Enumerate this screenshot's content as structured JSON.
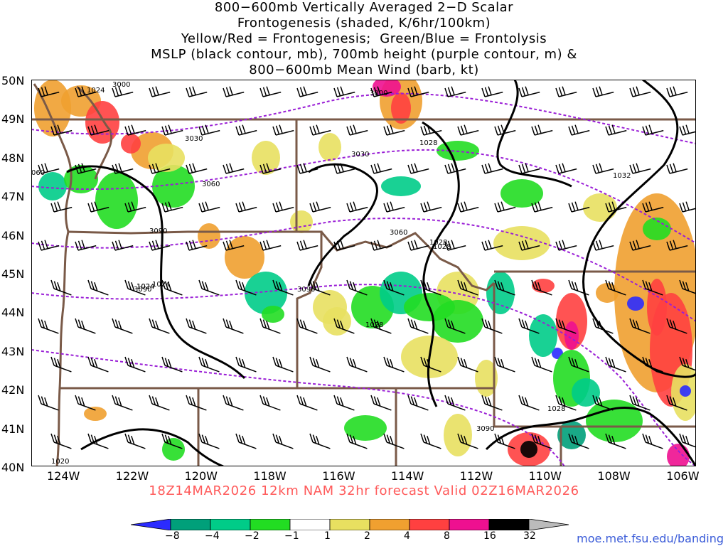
{
  "title_lines": [
    "800−600mb Vertically Averaged 2−D Scalar",
    "Frontogenesis (shaded, K/6hr/100km)",
    "Yellow/Red = Frontogenesis;  Green/Blue = Frontolysis",
    "MSLP (black contour, mb), 700mb height (purple contour, m) &",
    "800−600mb Mean Wind (barb, kt)"
  ],
  "valid_text": "18Z14MAR2026 12km NAM 32hr forecast Valid 02Z16MAR2026",
  "credit": "moe.met.fsu.edu/banding",
  "lat_labels": [
    "50N",
    "49N",
    "48N",
    "47N",
    "46N",
    "45N",
    "44N",
    "43N",
    "42N",
    "41N",
    "40N"
  ],
  "lon_labels": [
    "124W",
    "122W",
    "120W",
    "118W",
    "116W",
    "114W",
    "112W",
    "110W",
    "108W",
    "106W"
  ],
  "colorbar": {
    "labels": [
      "−8",
      "−4",
      "−2",
      "−1",
      "1",
      "2",
      "4",
      "8",
      "16",
      "32"
    ],
    "colors": [
      "#2b2bff",
      "#00a07a",
      "#00cc88",
      "#22dd22",
      "#ffffff",
      "#e8e060",
      "#f0a030",
      "#ff4040",
      "#ee1090",
      "#000000",
      "#bbbbbb"
    ]
  },
  "contour_labels": {
    "mslp": [
      "1024",
      "1028",
      "1028",
      "1032",
      "1028",
      "1024",
      "1028",
      "1024",
      "1028",
      "1024",
      "1020"
    ],
    "height": [
      "3000",
      "3000",
      "3030",
      "3030",
      "3060",
      "3060",
      "3090",
      "3090",
      "3090",
      "3090",
      "060"
    ]
  },
  "colors": {
    "mslp_contour": "#000000",
    "height_contour": "#9a1fd6",
    "borders": "#7a5a48",
    "valid_text": "#ff5a5a",
    "credit_text": "#3a5bd8"
  }
}
